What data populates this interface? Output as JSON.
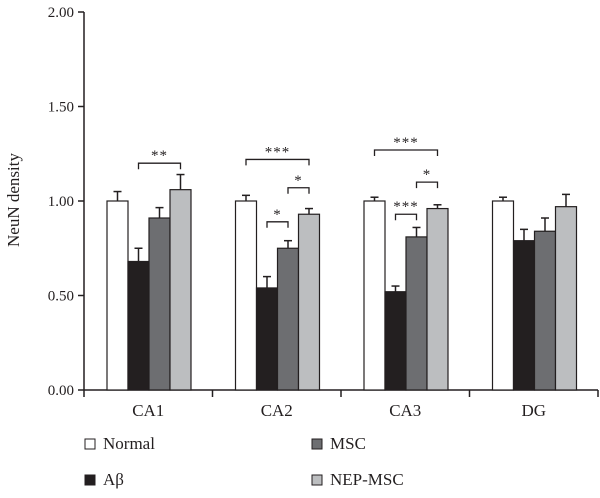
{
  "chart_data": {
    "type": "bar",
    "title": "",
    "xlabel": "",
    "ylabel": "NeuN density",
    "ylim": [
      0,
      2.0
    ],
    "yticks": [
      "0.00",
      "0.50",
      "1.00",
      "1.50",
      "2.00"
    ],
    "ytick_values": [
      0,
      0.5,
      1.0,
      1.5,
      2.0
    ],
    "grid": false,
    "legend_position": "bottom",
    "categories": [
      "CA1",
      "CA2",
      "CA3",
      "DG"
    ],
    "series": [
      {
        "name": "Normal",
        "color": "#ffffff",
        "values": [
          1.0,
          1.0,
          1.0,
          1.0
        ],
        "error": [
          0.05,
          0.03,
          0.02,
          0.02
        ]
      },
      {
        "name": "Aβ",
        "color": "#231f20",
        "values": [
          0.68,
          0.54,
          0.52,
          0.79
        ],
        "error": [
          0.07,
          0.06,
          0.03,
          0.06
        ]
      },
      {
        "name": "MSC",
        "color": "#6d6e71",
        "values": [
          0.91,
          0.75,
          0.81,
          0.84
        ],
        "error": [
          0.055,
          0.04,
          0.05,
          0.07
        ]
      },
      {
        "name": "NEP-MSC",
        "color": "#bcbec0",
        "values": [
          1.06,
          0.93,
          0.96,
          0.97
        ],
        "error": [
          0.08,
          0.03,
          0.02,
          0.065
        ]
      }
    ],
    "significance": [
      {
        "category": "CA1",
        "from": 1,
        "to": 3,
        "label": "**",
        "level": 1.2
      },
      {
        "category": "CA2",
        "from": 0,
        "to": 3,
        "label": "***",
        "level": 1.22
      },
      {
        "category": "CA2",
        "from": 2,
        "to": 3,
        "label": "*",
        "level": 1.07
      },
      {
        "category": "CA2",
        "from": 1,
        "to": 2,
        "label": "*",
        "level": 0.89
      },
      {
        "category": "CA3",
        "from": 0,
        "to": 3,
        "label": "***",
        "level": 1.27
      },
      {
        "category": "CA3",
        "from": 2,
        "to": 3,
        "label": "*",
        "level": 1.1
      },
      {
        "category": "CA3",
        "from": 1,
        "to": 2,
        "label": "***",
        "level": 0.93
      }
    ]
  }
}
